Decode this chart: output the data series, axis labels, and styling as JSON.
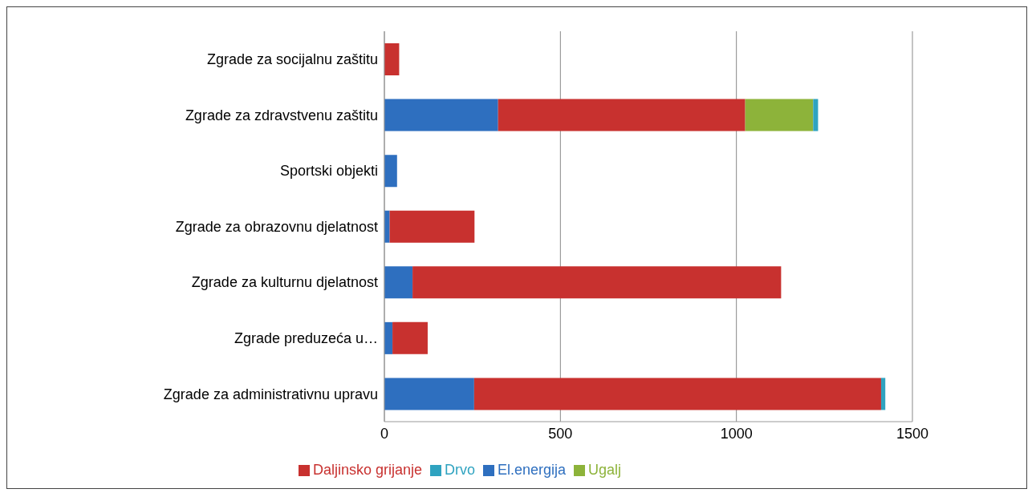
{
  "chart_data": {
    "type": "bar",
    "orientation": "horizontal",
    "stacked": true,
    "categories": [
      "Zgrade za socijalnu zaštitu",
      "Zgrade za zdravstvenu zaštitu",
      "Sportski objekti",
      "Zgrade za obrazovnu djelatnost",
      "Zgrade za kulturnu djelatnost",
      "Zgrade preduzeća u…",
      "Zgrade za administrativnu upravu"
    ],
    "series": [
      {
        "name": "El.energija",
        "color": "#2e6fbf",
        "values": [
          0,
          323,
          36,
          15,
          80,
          23,
          255
        ]
      },
      {
        "name": "Daljinsko grijanje",
        "color": "#c8312f",
        "values": [
          42,
          702,
          0,
          241,
          1047,
          100,
          1156
        ]
      },
      {
        "name": "Ugalj",
        "color": "#8db33a",
        "values": [
          0,
          193,
          0,
          0,
          0,
          0,
          0
        ]
      },
      {
        "name": "Drvo",
        "color": "#2fa3c0",
        "values": [
          0,
          14,
          0,
          0,
          0,
          0,
          12
        ]
      }
    ],
    "xlim": [
      0,
      1500
    ],
    "xticks": [
      0,
      500,
      1000,
      1500
    ],
    "grid": "x",
    "legend": "bottom"
  }
}
